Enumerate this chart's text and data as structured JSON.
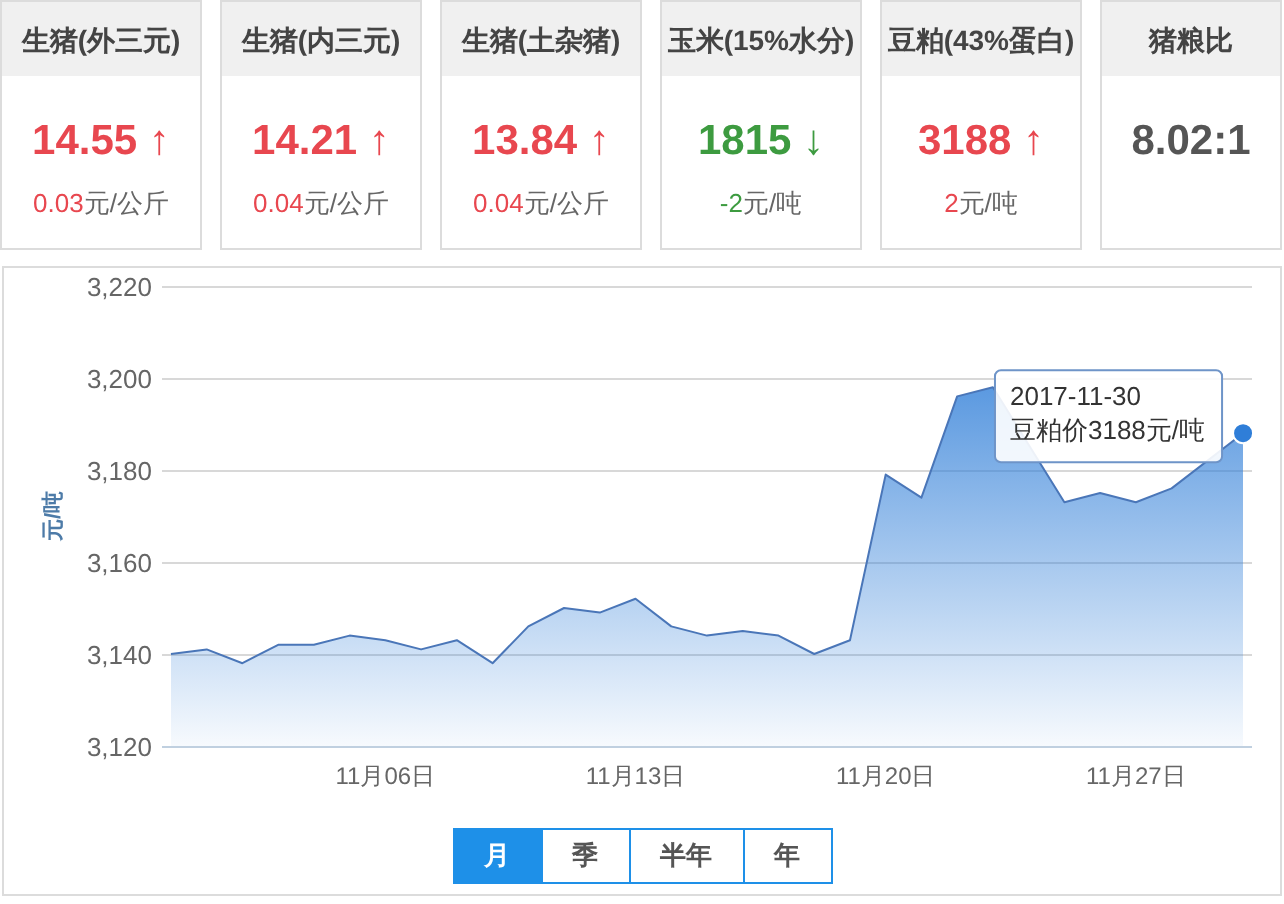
{
  "chart_data": [
    {
      "type": "other",
      "title": "生猪(外三元)",
      "annotations": [
        "14.55 ↑",
        "0.03",
        "元/公斤"
      ],
      "color": "#e8474f"
    },
    {
      "type": "other",
      "title": "生猪(内三元)",
      "annotations": [
        "14.21 ↑",
        "0.04",
        "元/公斤"
      ],
      "color": "#e8474f"
    },
    {
      "type": "other",
      "title": "生猪(土杂猪)",
      "annotations": [
        "13.84 ↑",
        "0.04",
        "元/公斤"
      ],
      "color": "#e8474f"
    },
    {
      "type": "other",
      "title": "玉米(15%水分)",
      "annotations": [
        "1815 ↓",
        "-2",
        "元/吨"
      ],
      "color": "#3d9b40"
    },
    {
      "type": "other",
      "title": "豆粕(43%蛋白)",
      "annotations": [
        "3188 ↑",
        "2",
        "元/吨"
      ],
      "color": "#e8474f"
    },
    {
      "type": "other",
      "title": "猪粮比",
      "annotations": [
        "8.02:1"
      ],
      "color": "#555555"
    },
    {
      "type": "area",
      "ylabel": "元/吨",
      "x": [
        "2017-10-31",
        "2017-11-01",
        "2017-11-02",
        "2017-11-03",
        "2017-11-04",
        "2017-11-05",
        "2017-11-06",
        "2017-11-07",
        "2017-11-08",
        "2017-11-09",
        "2017-11-10",
        "2017-11-11",
        "2017-11-12",
        "2017-11-13",
        "2017-11-14",
        "2017-11-15",
        "2017-11-16",
        "2017-11-17",
        "2017-11-18",
        "2017-11-19",
        "2017-11-20",
        "2017-11-21",
        "2017-11-22",
        "2017-11-23",
        "2017-11-24",
        "2017-11-25",
        "2017-11-26",
        "2017-11-27",
        "2017-11-28",
        "2017-11-29",
        "2017-11-30"
      ],
      "values": [
        3140,
        3141,
        3138,
        3142,
        3142,
        3144,
        3143,
        3141,
        3143,
        3138,
        3146,
        3150,
        3149,
        3152,
        3146,
        3144,
        3145,
        3144,
        3140,
        3143,
        3179,
        3174,
        3196,
        3198,
        null,
        3173,
        3175,
        3173,
        3176,
        null,
        3188
      ],
      "color": "#2f7ed8",
      "xlim": [
        "2017-10-30T18:00",
        "2017-11-30T06:00"
      ],
      "xticks": [
        {
          "value": "2017-11-06",
          "label": "11月06日"
        },
        {
          "value": "2017-11-13",
          "label": "11月13日"
        },
        {
          "value": "2017-11-20",
          "label": "11月20日"
        },
        {
          "value": "2017-11-27",
          "label": "11月27日"
        }
      ],
      "ylim": [
        3120,
        3220
      ],
      "yticks": [
        {
          "value": 3120,
          "label": "3,120"
        },
        {
          "value": 3140,
          "label": "3,140"
        },
        {
          "value": 3160,
          "label": "3,160"
        },
        {
          "value": 3180,
          "label": "3,180"
        },
        {
          "value": 3200,
          "label": "3,200"
        },
        {
          "value": 3220,
          "label": "3,220"
        }
      ],
      "grid": "y",
      "annotations": [
        "2017-11-30",
        "豆粕价3188元/吨"
      ]
    },
    {
      "type": "other",
      "annotations": [
        "月",
        "季",
        "半年",
        "年"
      ]
    }
  ]
}
